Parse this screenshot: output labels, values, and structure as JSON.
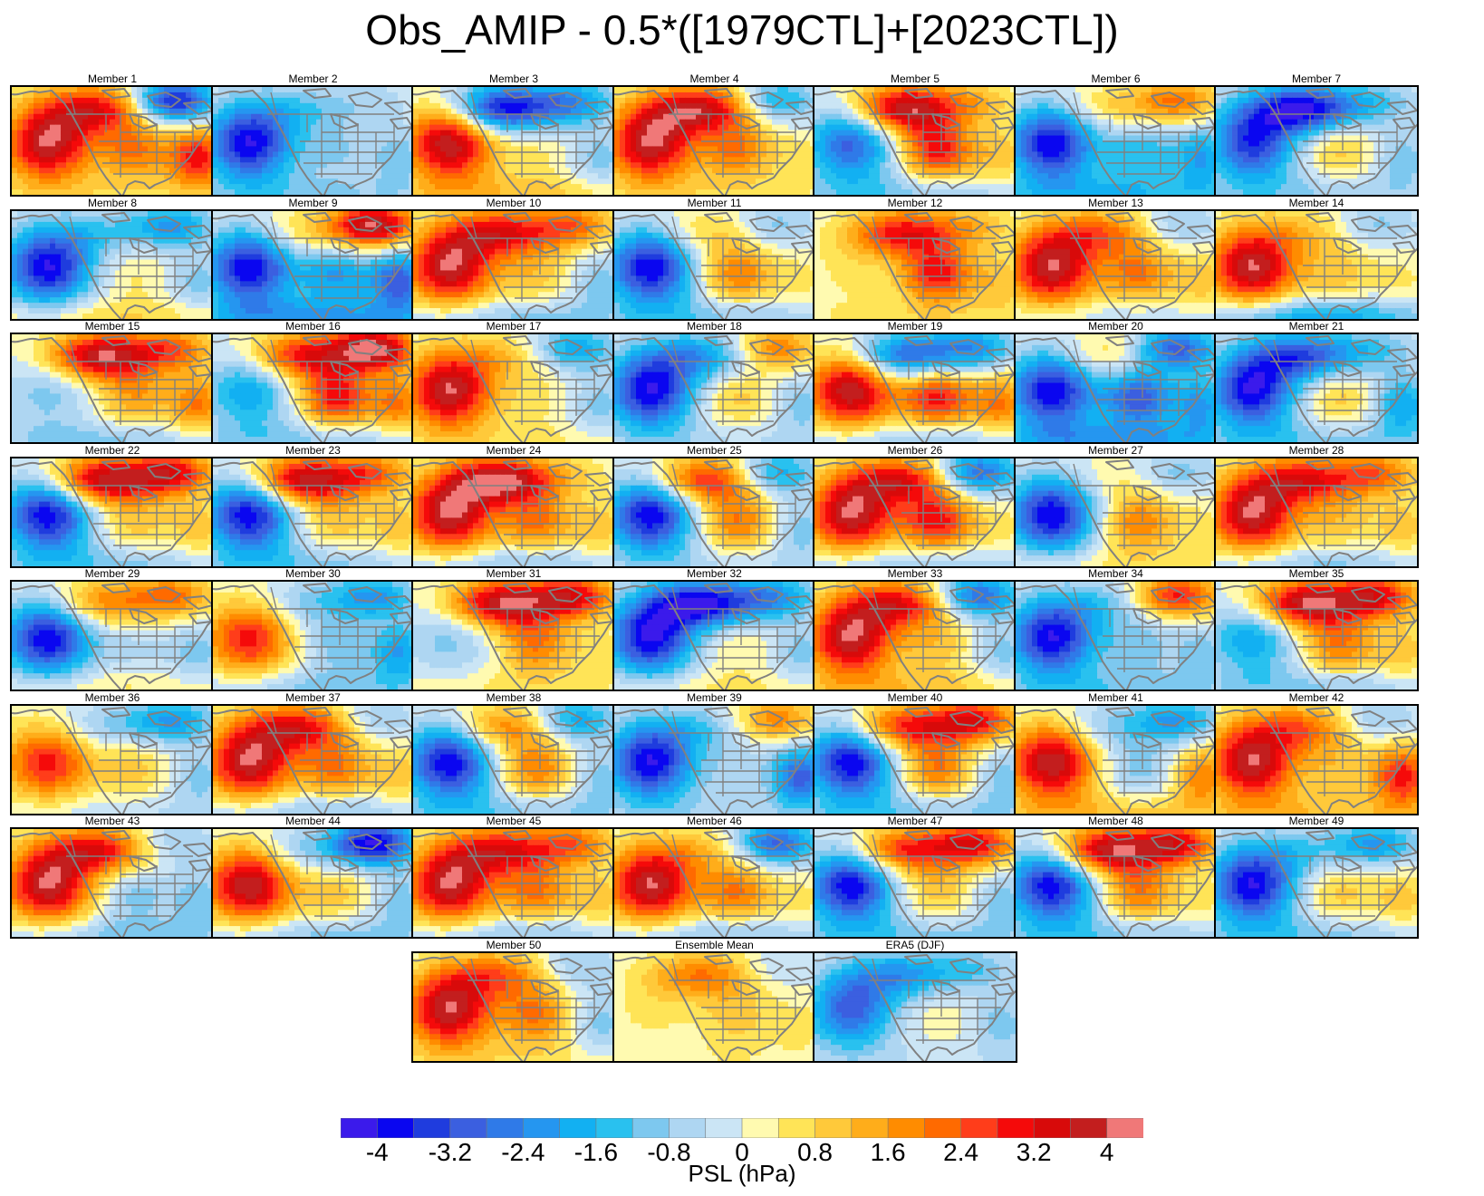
{
  "title": "Obs_AMIP - 0.5*([1979CTL]+[2023CTL])",
  "colorbar": {
    "label": "PSL (hPa)",
    "colors": [
      "#3b1aeb",
      "#0a06f0",
      "#1f3cde",
      "#3b5fe0",
      "#2f7ae8",
      "#2596f0",
      "#12b0f2",
      "#29c1ef",
      "#7dc8ef",
      "#aed6f2",
      "#cbe5f5",
      "#fffab0",
      "#ffe457",
      "#ffc93a",
      "#ffad1a",
      "#ff8c00",
      "#ff6a00",
      "#ff3d1a",
      "#f50a0a",
      "#d80a0a",
      "#c31e1e",
      "#f07878"
    ],
    "tick_labels": [
      "-4",
      "-3.2",
      "-2.4",
      "-1.6",
      "-0.8",
      "0",
      "0.8",
      "1.6",
      "2.4",
      "3.2",
      "4"
    ],
    "tick_values": [
      -4,
      -3.2,
      -2.4,
      -1.6,
      -0.8,
      0,
      0.8,
      1.6,
      2.4,
      3.2,
      4
    ]
  },
  "chart_data": {
    "type": "heatmap",
    "variable": "PSL",
    "units": "hPa",
    "color_levels": [
      -4,
      -3.6,
      -3.2,
      -2.8,
      -2.4,
      -2,
      -1.6,
      -1.2,
      -0.8,
      -0.4,
      0,
      0.4,
      0.8,
      1.2,
      1.6,
      2,
      2.4,
      2.8,
      3.2,
      3.6,
      4
    ],
    "panels": [
      {
        "title": "Member 1",
        "pattern": {
          "pac": 4,
          "nw": 3,
          "ne": -4,
          "cen": 2,
          "east": 3,
          "south": 0.5
        }
      },
      {
        "title": "Member 2",
        "pattern": {
          "pac": -4,
          "nw": -1,
          "ne": -0.5,
          "cen": -0.8,
          "east": -1,
          "south": -0.8
        }
      },
      {
        "title": "Member 3",
        "pattern": {
          "pac": 4,
          "nw": -4,
          "ne": -2,
          "cen": 0.5,
          "east": -1,
          "south": 1
        }
      },
      {
        "title": "Member 4",
        "pattern": {
          "pac": 4,
          "nw": 3.5,
          "ne": -2,
          "cen": 2,
          "east": 0.5,
          "south": 0.5
        }
      },
      {
        "title": "Member 5",
        "pattern": {
          "pac": -3,
          "nw": 4,
          "ne": 1,
          "cen": 3,
          "east": 1,
          "south": -1
        }
      },
      {
        "title": "Member 6",
        "pattern": {
          "pac": -4,
          "nw": 1,
          "ne": 2,
          "cen": -1.5,
          "east": -2,
          "south": -1.5
        }
      },
      {
        "title": "Member 7",
        "pattern": {
          "pac": -3.5,
          "nw": -4,
          "ne": -1,
          "cen": 1,
          "east": -1,
          "south": -0.8
        }
      },
      {
        "title": "Member 8",
        "pattern": {
          "pac": -4,
          "nw": -1,
          "ne": -2,
          "cen": 0.5,
          "east": -1,
          "south": 0.8
        }
      },
      {
        "title": "Member 9",
        "pattern": {
          "pac": -4,
          "nw": 1,
          "ne": 4,
          "cen": -2,
          "east": -3,
          "south": -2
        }
      },
      {
        "title": "Member 10",
        "pattern": {
          "pac": 4,
          "nw": 3,
          "ne": 2,
          "cen": 1,
          "east": -1,
          "south": -1
        }
      },
      {
        "title": "Member 11",
        "pattern": {
          "pac": -4,
          "nw": 1,
          "ne": -1,
          "cen": 2,
          "east": 0.5,
          "south": -1
        }
      },
      {
        "title": "Member 12",
        "pattern": {
          "pac": 0.5,
          "nw": 3,
          "ne": 1,
          "cen": 3,
          "east": 1,
          "south": 0.5
        }
      },
      {
        "title": "Member 13",
        "pattern": {
          "pac": 4,
          "nw": 2,
          "ne": -1,
          "cen": 2,
          "east": 1,
          "south": -0.5
        }
      },
      {
        "title": "Member 14",
        "pattern": {
          "pac": 4,
          "nw": 1,
          "ne": -1,
          "cen": 1,
          "east": 0.5,
          "south": -2
        }
      },
      {
        "title": "Member 15",
        "pattern": {
          "pac": -1,
          "nw": 4,
          "ne": 2,
          "cen": 1.5,
          "east": 2,
          "south": -1
        }
      },
      {
        "title": "Member 16",
        "pattern": {
          "pac": -2,
          "nw": 3,
          "ne": 4,
          "cen": 3,
          "east": 2,
          "south": -1
        }
      },
      {
        "title": "Member 17",
        "pattern": {
          "pac": 4,
          "nw": 1,
          "ne": -2,
          "cen": 0.5,
          "east": -1,
          "south": 0.5
        }
      },
      {
        "title": "Member 18",
        "pattern": {
          "pac": -4,
          "nw": -2,
          "ne": 2,
          "cen": 1,
          "east": -1,
          "south": -0.5
        }
      },
      {
        "title": "Member 19",
        "pattern": {
          "pac": 4,
          "nw": -3,
          "ne": -2,
          "cen": 3,
          "east": 2,
          "south": -1
        }
      },
      {
        "title": "Member 20",
        "pattern": {
          "pac": -4,
          "nw": 1,
          "ne": -3,
          "cen": -3,
          "east": -2,
          "south": -2
        }
      },
      {
        "title": "Member 21",
        "pattern": {
          "pac": -4,
          "nw": -3,
          "ne": -1,
          "cen": 1,
          "east": -2,
          "south": -1
        }
      },
      {
        "title": "Member 22",
        "pattern": {
          "pac": -4,
          "nw": 4,
          "ne": 3,
          "cen": 1,
          "east": 1,
          "south": -1
        }
      },
      {
        "title": "Member 23",
        "pattern": {
          "pac": -4,
          "nw": 4,
          "ne": 2,
          "cen": 1,
          "east": 1,
          "south": -1
        }
      },
      {
        "title": "Member 24",
        "pattern": {
          "pac": 4,
          "nw": 4,
          "ne": 0.5,
          "cen": 2,
          "east": 1,
          "south": -1
        }
      },
      {
        "title": "Member 25",
        "pattern": {
          "pac": -4,
          "nw": 3,
          "ne": -2,
          "cen": 2,
          "east": -1,
          "south": -0.5
        }
      },
      {
        "title": "Member 26",
        "pattern": {
          "pac": 4,
          "nw": 3,
          "ne": -3,
          "cen": 3,
          "east": 0.5,
          "south": -1
        }
      },
      {
        "title": "Member 27",
        "pattern": {
          "pac": -4,
          "nw": 0.5,
          "ne": -1,
          "cen": 2,
          "east": 0.5,
          "south": 0.5
        }
      },
      {
        "title": "Member 28",
        "pattern": {
          "pac": 4,
          "nw": 3,
          "ne": 2,
          "cen": 1,
          "east": 1,
          "south": -1
        }
      },
      {
        "title": "Member 29",
        "pattern": {
          "pac": -4,
          "nw": 2,
          "ne": 2,
          "cen": -0.5,
          "east": -1,
          "south": 0.5
        }
      },
      {
        "title": "Member 30",
        "pattern": {
          "pac": 3,
          "nw": -1,
          "ne": -2,
          "cen": -1,
          "east": -2,
          "south": -1
        }
      },
      {
        "title": "Member 31",
        "pattern": {
          "pac": -1,
          "nw": 4,
          "ne": 3,
          "cen": 2,
          "east": 0.5,
          "south": 0.5
        }
      },
      {
        "title": "Member 32",
        "pattern": {
          "pac": -4,
          "nw": -4,
          "ne": -2,
          "cen": 0.5,
          "east": -1,
          "south": 0.5
        }
      },
      {
        "title": "Member 33",
        "pattern": {
          "pac": 4,
          "nw": 3,
          "ne": -3,
          "cen": 1,
          "east": -1,
          "south": 1
        }
      },
      {
        "title": "Member 34",
        "pattern": {
          "pac": -4,
          "nw": -1,
          "ne": 3,
          "cen": -1,
          "east": -1,
          "south": -1
        }
      },
      {
        "title": "Member 35",
        "pattern": {
          "pac": -2,
          "nw": 4,
          "ne": 3,
          "cen": 2,
          "east": 1,
          "south": -1
        }
      },
      {
        "title": "Member 36",
        "pattern": {
          "pac": 3,
          "nw": -1,
          "ne": -2,
          "cen": 1,
          "east": -1,
          "south": -0.5
        }
      },
      {
        "title": "Member 37",
        "pattern": {
          "pac": 4,
          "nw": 3,
          "ne": -1,
          "cen": 2,
          "east": 1,
          "south": -1
        }
      },
      {
        "title": "Member 38",
        "pattern": {
          "pac": -4,
          "nw": 2,
          "ne": -2,
          "cen": 2,
          "east": -1,
          "south": -1
        }
      },
      {
        "title": "Member 39",
        "pattern": {
          "pac": -4,
          "nw": -1,
          "ne": 2,
          "cen": -0.5,
          "east": -3,
          "south": -0.5
        }
      },
      {
        "title": "Member 40",
        "pattern": {
          "pac": -4,
          "nw": 3,
          "ne": 3,
          "cen": 2,
          "east": -1,
          "south": -1
        }
      },
      {
        "title": "Member 41",
        "pattern": {
          "pac": 4,
          "nw": -1,
          "ne": -2,
          "cen": -1,
          "east": 2,
          "south": 1
        }
      },
      {
        "title": "Member 42",
        "pattern": {
          "pac": 4,
          "nw": 2,
          "ne": -1,
          "cen": 1,
          "east": 3,
          "south": 1
        }
      },
      {
        "title": "Member 43",
        "pattern": {
          "pac": 4,
          "nw": 3,
          "ne": -1,
          "cen": -1,
          "east": -1,
          "south": -1
        }
      },
      {
        "title": "Member 44",
        "pattern": {
          "pac": 4,
          "nw": -1,
          "ne": -4,
          "cen": 1,
          "east": -1,
          "south": -1
        }
      },
      {
        "title": "Member 45",
        "pattern": {
          "pac": 4,
          "nw": 3,
          "ne": 2,
          "cen": 2,
          "east": 1,
          "south": -1
        }
      },
      {
        "title": "Member 46",
        "pattern": {
          "pac": 4,
          "nw": 1,
          "ne": -3,
          "cen": 2,
          "east": 0.5,
          "south": -1
        }
      },
      {
        "title": "Member 47",
        "pattern": {
          "pac": -4,
          "nw": 3,
          "ne": 3,
          "cen": 1,
          "east": -1,
          "south": -1
        }
      },
      {
        "title": "Member 48",
        "pattern": {
          "pac": -4,
          "nw": 4,
          "ne": 3,
          "cen": 2,
          "east": 0.5,
          "south": -1
        }
      },
      {
        "title": "Member 49",
        "pattern": {
          "pac": -4,
          "nw": -1,
          "ne": -2,
          "cen": 1,
          "east": 1,
          "south": -1
        }
      },
      {
        "title": "Member 50",
        "pattern": {
          "pac": 4,
          "nw": 2,
          "ne": -1,
          "cen": 2,
          "east": -1,
          "south": 0.5
        }
      },
      {
        "title": "Ensemble Mean",
        "pattern": {
          "pac": 0.5,
          "nw": 2,
          "ne": -0.5,
          "cen": 1,
          "east": 0.5,
          "south": 0.3
        }
      },
      {
        "title": "ERA5 (DJF)",
        "pattern": {
          "pac": -3,
          "nw": -2,
          "ne": -1,
          "cen": 0.3,
          "east": -1,
          "south": -0.3
        }
      }
    ]
  }
}
